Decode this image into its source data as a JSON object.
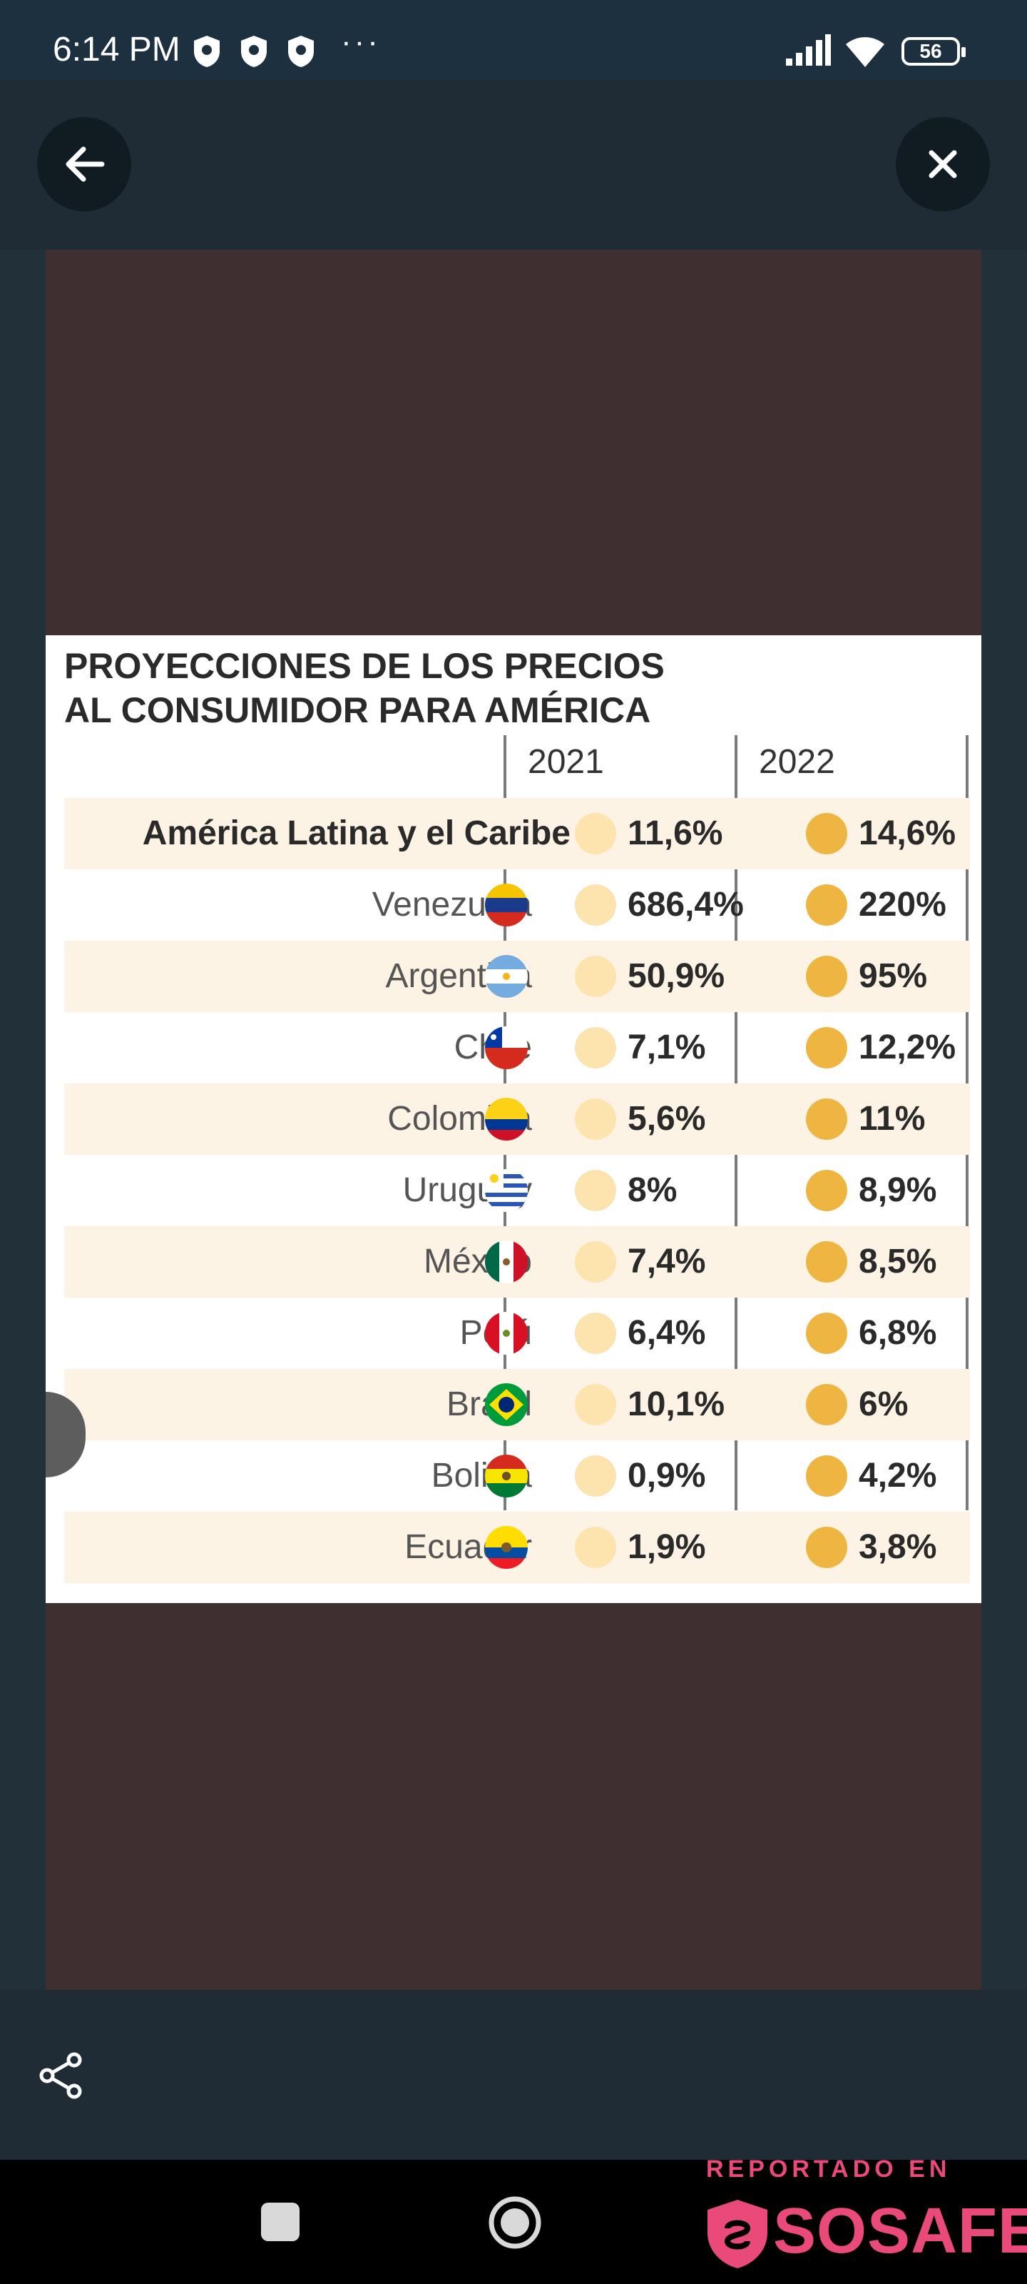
{
  "status_bar": {
    "time": "6:14 PM",
    "more": "···",
    "battery": "56"
  },
  "infographic": {
    "title_line1": "PROYECCIONES DE LOS PRECIOS",
    "title_line2": "AL CONSUMIDOR PARA AMÉRICA",
    "col_2021": "2021",
    "col_2022": "2022",
    "rows": [
      {
        "country": "América Latina y el Caribe",
        "v2021": "11,6%",
        "v2022": "14,6%"
      },
      {
        "country": "Venezuela",
        "v2021": "686,4%",
        "v2022": "220%"
      },
      {
        "country": "Argentina",
        "v2021": "50,9%",
        "v2022": "95%"
      },
      {
        "country": "Chile",
        "v2021": "7,1%",
        "v2022": "12,2%"
      },
      {
        "country": "Colombia",
        "v2021": "5,6%",
        "v2022": "11%"
      },
      {
        "country": "Uruguay",
        "v2021": "8%",
        "v2022": "8,9%"
      },
      {
        "country": "México",
        "v2021": "7,4%",
        "v2022": "8,5%"
      },
      {
        "country": "Perú",
        "v2021": "6,4%",
        "v2022": "6,8%"
      },
      {
        "country": "Brasil",
        "v2021": "10,1%",
        "v2022": "6%"
      },
      {
        "country": "Bolivia",
        "v2021": "0,9%",
        "v2022": "4,2%"
      },
      {
        "country": "Ecuador",
        "v2021": "1,9%",
        "v2022": "3,8%"
      }
    ]
  },
  "watermark": {
    "line1": "REPORTADO EN",
    "brand": "SOSAFE"
  },
  "colors": {
    "dot_2021": "#fde3ae",
    "dot_2022": "#eeb640",
    "brand": "#e94a7a",
    "stage": "#3f2f30"
  }
}
